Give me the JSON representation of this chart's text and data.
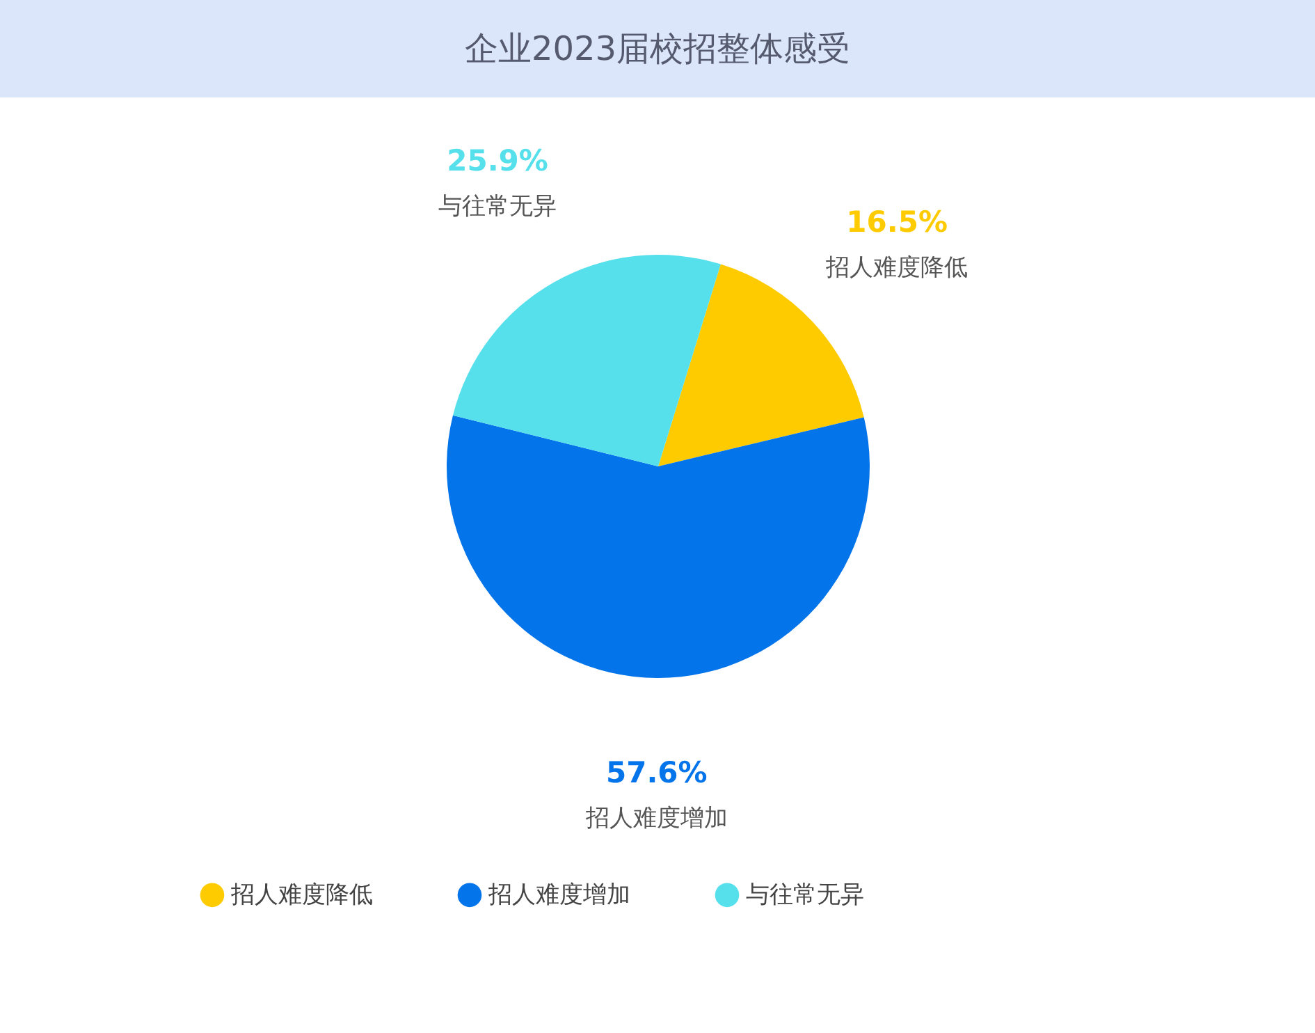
{
  "chart_data": {
    "type": "pie",
    "title": "企业2023届校招整体感受",
    "categories": [
      "招人难度降低",
      "招人难度增加",
      "与往常无异"
    ],
    "values": [
      16.5,
      57.6,
      25.9
    ],
    "value_labels": [
      "16.5%",
      "57.6%",
      "25.9%"
    ],
    "colors": [
      "#fdcb00",
      "#0474ea",
      "#55e0ec"
    ],
    "legend": "bottom"
  }
}
